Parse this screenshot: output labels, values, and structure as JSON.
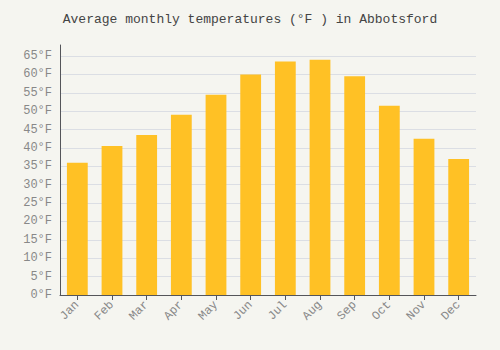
{
  "chart_data": {
    "type": "bar",
    "title": "Average monthly temperatures (°F ) in Abbotsford",
    "categories": [
      "Jan",
      "Feb",
      "Mar",
      "Apr",
      "May",
      "Jun",
      "Jul",
      "Aug",
      "Sep",
      "Oct",
      "Nov",
      "Dec"
    ],
    "values": [
      36,
      40.5,
      43.5,
      49,
      54.5,
      60,
      63.5,
      64,
      59.5,
      51.5,
      42.5,
      37
    ],
    "color": "#FFC125",
    "ylim": [
      0,
      68
    ],
    "yticks": [
      {
        "value": 0,
        "label": "0°F"
      },
      {
        "value": 5,
        "label": "5°F"
      },
      {
        "value": 10,
        "label": "10°F"
      },
      {
        "value": 15,
        "label": "15°F"
      },
      {
        "value": 20,
        "label": "20°F"
      },
      {
        "value": 25,
        "label": "25°F"
      },
      {
        "value": 30,
        "label": "30°F"
      },
      {
        "value": 35,
        "label": "35°F"
      },
      {
        "value": 40,
        "label": "40°F"
      },
      {
        "value": 45,
        "label": "45°F"
      },
      {
        "value": 50,
        "label": "50°F"
      },
      {
        "value": 55,
        "label": "55°F"
      },
      {
        "value": 60,
        "label": "60°F"
      },
      {
        "value": 65,
        "label": "65°F"
      }
    ],
    "grid": true
  }
}
